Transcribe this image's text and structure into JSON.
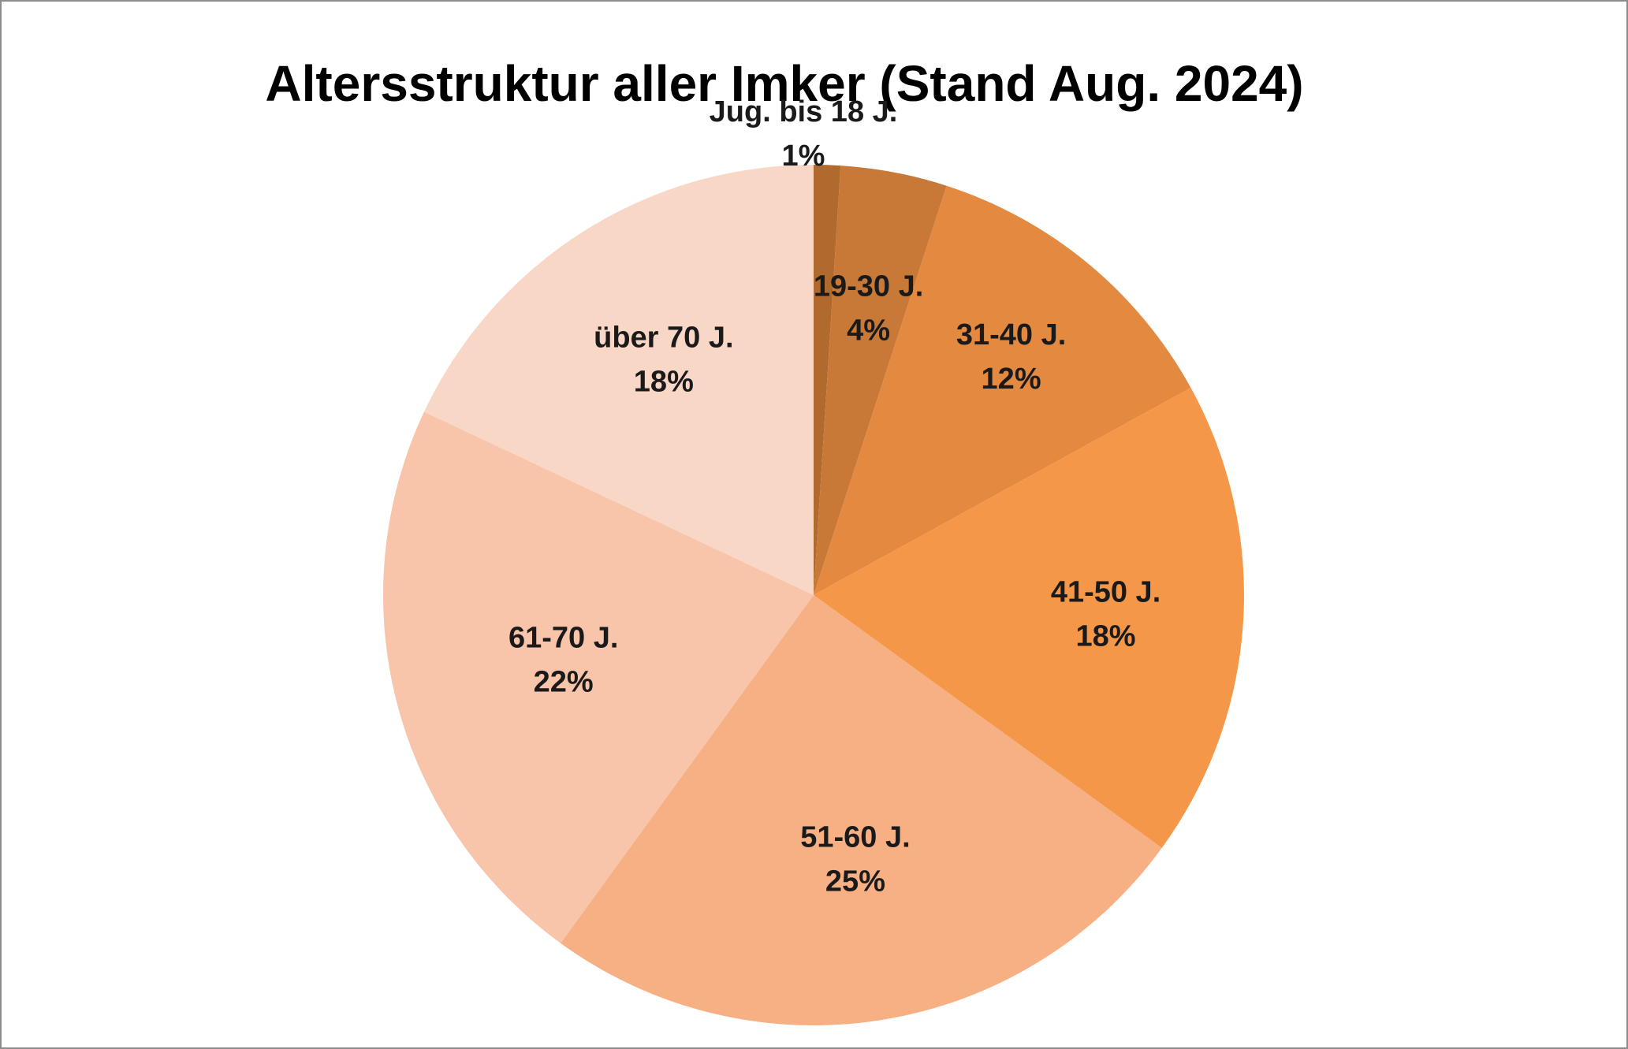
{
  "chart_data": {
    "type": "pie",
    "title": "Altersstruktur aller Imker (Stand Aug. 2024)",
    "slices": [
      {
        "category": "Jug. bis 18 J.",
        "value": 1,
        "label": "1%",
        "color": "#B06A2E"
      },
      {
        "category": "19-30 J.",
        "value": 4,
        "label": "4%",
        "color": "#C87937"
      },
      {
        "category": "31-40 J.",
        "value": 12,
        "label": "12%",
        "color": "#E38A40"
      },
      {
        "category": "41-50 J.",
        "value": 18,
        "label": "18%",
        "color": "#F59748"
      },
      {
        "category": "51-60 J.",
        "value": 25,
        "label": "25%",
        "color": "#F7AF84"
      },
      {
        "category": "61-70 J.",
        "value": 22,
        "label": "22%",
        "color": "#F8C4AA"
      },
      {
        "category": "über 70 J.",
        "value": 18,
        "label": "18%",
        "color": "#F9D7C6"
      }
    ],
    "start_angle": "12 o'clock",
    "direction": "clockwise",
    "legend": "none",
    "labels": "category and percentage on slices"
  }
}
